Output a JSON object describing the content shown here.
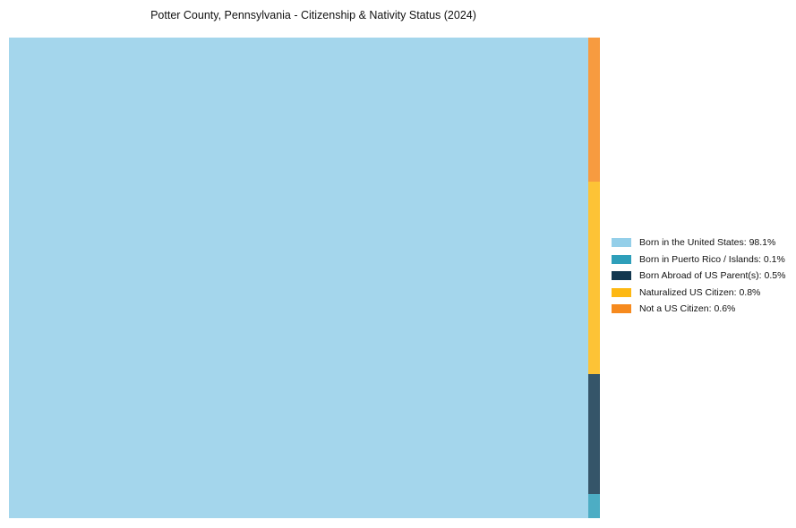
{
  "chart_data": {
    "type": "treemap",
    "title": "Potter County, Pennsylvania - Citizenship & Nativity Status (2024)",
    "unit": "%",
    "categories": [
      "Born in the United States",
      "Born in Puerto Rico / Islands",
      "Born Abroad of US Parent(s)",
      "Naturalized US Citizen",
      "Not a US Citizen"
    ],
    "values": [
      98.1,
      0.1,
      0.5,
      0.8,
      0.6
    ],
    "colors": [
      "#94CFE9",
      "#2E9FBA",
      "#12374F",
      "#FDB813",
      "#F68A1E"
    ],
    "segment_opacity": 0.85,
    "legend_labels": [
      "Born in the United States: 98.1%",
      "Born in Puerto Rico / Islands: 0.1%",
      "Born Abroad of US Parent(s): 0.5%",
      "Naturalized US Citizen: 0.8%",
      "Not a US Citizen: 0.6%"
    ],
    "legend_position": "right-center",
    "layout": "largest category fills the left block at full height; remaining categories are stacked top-to-bottom in a narrow strip on the right edge",
    "strip_order_top_to_bottom": [
      "Not a US Citizen",
      "Naturalized US Citizen",
      "Born Abroad of US Parent(s)",
      "Born in Puerto Rico / Islands"
    ],
    "grid": false
  }
}
